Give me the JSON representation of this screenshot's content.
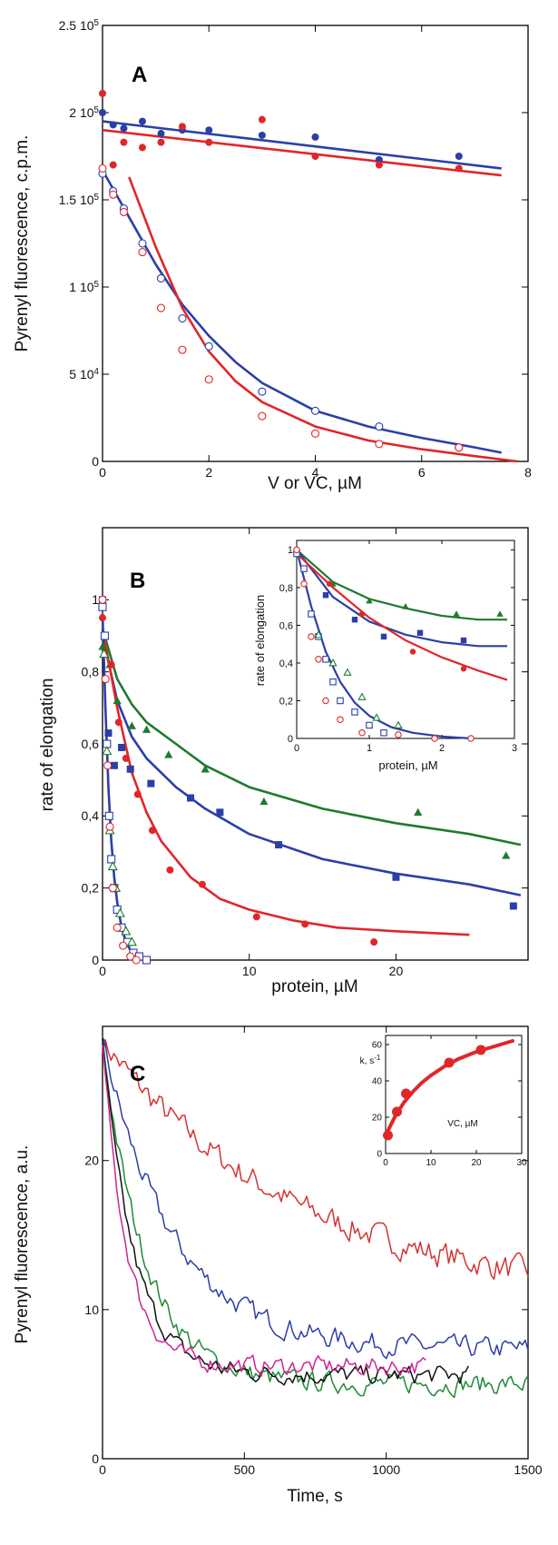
{
  "chart_data": [
    {
      "panel": "A",
      "type": "scatter",
      "xlabel": "V or VC, µM",
      "ylabel": "Pyrenyl fluorescence, c.p.m.",
      "xlim": [
        0,
        8
      ],
      "ylim": [
        0,
        250000
      ],
      "x_ticks": [
        "0",
        "2",
        "4",
        "6",
        "8"
      ],
      "y_ticks": [
        {
          "value": 0,
          "label": "0"
        },
        {
          "value": 50000,
          "label": "5 10",
          "exp": "4"
        },
        {
          "value": 100000,
          "label": "1 10",
          "exp": "5"
        },
        {
          "value": 150000,
          "label": "1.5 10",
          "exp": "5"
        },
        {
          "value": 200000,
          "label": "2 10",
          "exp": "5"
        },
        {
          "value": 250000,
          "label": "2.5 10",
          "exp": "5"
        }
      ],
      "series": [
        {
          "color": "#2b3fa8",
          "marker": "filled-circle",
          "x": [
            0,
            0.2,
            0.4,
            0.75,
            1.1,
            1.5,
            2.0,
            3.0,
            4.0,
            5.2,
            6.7
          ],
          "y": [
            200000,
            193000,
            191000,
            195000,
            188000,
            190000,
            190000,
            187000,
            186000,
            173000,
            175000
          ],
          "fit_x": [
            0,
            7.5
          ],
          "fit_y": [
            195000,
            168000
          ]
        },
        {
          "color": "#e0262a",
          "marker": "filled-circle",
          "x": [
            0,
            0.2,
            0.4,
            0.75,
            1.1,
            1.5,
            2.0,
            3.0,
            4.0,
            5.2,
            6.7
          ],
          "y": [
            211000,
            170000,
            183000,
            180000,
            183000,
            192000,
            183000,
            196000,
            175000,
            170000,
            168000
          ],
          "fit_x": [
            0,
            7.5
          ],
          "fit_y": [
            190000,
            164000
          ]
        },
        {
          "color": "#2b3fa8",
          "marker": "open-circle",
          "x": [
            0,
            0.2,
            0.4,
            0.75,
            1.1,
            1.5,
            2.0,
            3.0,
            4.0,
            5.2,
            6.7
          ],
          "y": [
            165000,
            155000,
            145000,
            125000,
            105000,
            82000,
            66000,
            40000,
            29000,
            20000,
            8000
          ],
          "fit_x": [
            0,
            0.5,
            1,
            1.5,
            2,
            2.5,
            3,
            4,
            5,
            6,
            7,
            7.5
          ],
          "fit_y": [
            167000,
            140000,
            113000,
            90000,
            72000,
            57000,
            45000,
            29000,
            20000,
            13500,
            8000,
            5000
          ]
        },
        {
          "color": "#e0262a",
          "marker": "open-circle",
          "x": [
            0,
            0.2,
            0.4,
            0.75,
            1.1,
            1.5,
            2.0,
            3.0,
            4.0,
            5.2,
            6.7
          ],
          "y": [
            168000,
            153000,
            143000,
            120000,
            88000,
            64000,
            47000,
            26000,
            16000,
            10000,
            8000
          ],
          "fit_x": [
            0.5,
            1,
            1.5,
            2,
            2.5,
            3,
            4,
            5,
            6,
            7,
            7.8
          ],
          "fit_y": [
            163000,
            123000,
            88000,
            63000,
            46000,
            34000,
            20000,
            12000,
            7000,
            3000,
            0
          ]
        }
      ]
    },
    {
      "panel": "B",
      "type": "scatter",
      "xlabel": "protein, µM",
      "ylabel": "rate of elongation",
      "xlim": [
        0,
        29
      ],
      "ylim": [
        0,
        1.2
      ],
      "x_ticks": [
        "0",
        "10",
        "20"
      ],
      "y_ticks": [
        {
          "value": 0,
          "label": "0"
        },
        {
          "value": 0.2,
          "label": "0,2"
        },
        {
          "value": 0.4,
          "label": "0,4"
        },
        {
          "value": 0.6,
          "label": "0,6"
        },
        {
          "value": 0.8,
          "label": "0,8"
        },
        {
          "value": 1.0,
          "label": "1"
        }
      ],
      "series": [
        {
          "color": "#1f7a2e",
          "marker": "filled-triangle",
          "x": [
            0,
            0.5,
            1,
            2,
            3,
            4.5,
            7,
            11,
            21.5,
            27.5
          ],
          "y": [
            0.87,
            0.82,
            0.72,
            0.65,
            0.64,
            0.57,
            0.53,
            0.44,
            0.41,
            0.29
          ],
          "fit_x": [
            0,
            1,
            2,
            3,
            5,
            7,
            10,
            15,
            20,
            25,
            28.5
          ],
          "fit_y": [
            0.92,
            0.78,
            0.71,
            0.66,
            0.6,
            0.54,
            0.48,
            0.42,
            0.38,
            0.35,
            0.32
          ]
        },
        {
          "color": "#2b3fa8",
          "marker": "filled-square",
          "x": [
            0,
            0.4,
            0.8,
            1.3,
            1.9,
            3.3,
            6.0,
            8.0,
            12.0,
            20.0,
            28.0
          ],
          "y": [
            1.0,
            0.63,
            0.54,
            0.59,
            0.53,
            0.49,
            0.45,
            0.41,
            0.32,
            0.23,
            0.15
          ],
          "fit_x": [
            0,
            1,
            2,
            3,
            5,
            7,
            10,
            15,
            20,
            25,
            28.5
          ],
          "fit_y": [
            0.9,
            0.72,
            0.62,
            0.56,
            0.48,
            0.42,
            0.35,
            0.28,
            0.24,
            0.21,
            0.18
          ]
        },
        {
          "color": "#e0262a",
          "marker": "filled-circle",
          "x": [
            0,
            0.6,
            1.1,
            1.6,
            2.4,
            3.4,
            4.6,
            6.8,
            10.5,
            13.8,
            18.5
          ],
          "y": [
            0.95,
            0.82,
            0.66,
            0.56,
            0.46,
            0.36,
            0.25,
            0.21,
            0.12,
            0.1,
            0.05
          ],
          "fit_x": [
            0,
            1,
            2,
            3,
            4,
            6,
            8,
            10,
            13,
            16,
            20,
            25
          ],
          "fit_y": [
            0.92,
            0.7,
            0.52,
            0.41,
            0.33,
            0.23,
            0.17,
            0.14,
            0.11,
            0.09,
            0.08,
            0.07
          ]
        },
        {
          "color": "#2b3fa8",
          "marker": "open-square",
          "x": [
            0,
            0.15,
            0.3,
            0.45,
            0.6,
            0.8,
            1.0,
            1.3,
            1.7,
            2.1,
            2.5,
            3.0
          ],
          "y": [
            0.98,
            0.9,
            0.6,
            0.4,
            0.28,
            0.2,
            0.14,
            0.09,
            0.05,
            0.02,
            0.01,
            0.0
          ],
          "fit_x": [
            0,
            0.2,
            0.4,
            0.6,
            0.8,
            1.0,
            1.3,
            1.6,
            2.0,
            2.5,
            3.0
          ],
          "fit_y": [
            0.96,
            0.7,
            0.48,
            0.33,
            0.23,
            0.16,
            0.09,
            0.05,
            0.02,
            0.01,
            0.0
          ]
        },
        {
          "color": "#1f7a2e",
          "marker": "open-triangle",
          "x": [
            0.1,
            0.3,
            0.5,
            0.7,
            0.9,
            1.2,
            1.6,
            2.0
          ],
          "y": [
            0.85,
            0.58,
            0.36,
            0.26,
            0.2,
            0.13,
            0.08,
            0.05
          ]
        },
        {
          "color": "#e0262a",
          "marker": "open-circle",
          "x": [
            0,
            0.2,
            0.35,
            0.5,
            0.7,
            1.0,
            1.4,
            1.9,
            2.3
          ],
          "y": [
            1.0,
            0.78,
            0.54,
            0.37,
            0.2,
            0.09,
            0.04,
            0.01,
            0.0
          ]
        }
      ],
      "inset": {
        "xlabel": "protein, µM",
        "ylabel": "rate of elongation",
        "xlim": [
          0,
          3
        ],
        "ylim": [
          0,
          1.05
        ],
        "x_ticks": [
          "0",
          "1",
          "2",
          "3"
        ],
        "y_ticks": [
          {
            "value": 0,
            "label": "0"
          },
          {
            "value": 0.2,
            "label": "0,2"
          },
          {
            "value": 0.4,
            "label": "0,4"
          },
          {
            "value": 0.6,
            "label": "0,6"
          },
          {
            "value": 0.8,
            "label": "0,8"
          },
          {
            "value": 1.0,
            "label": "1"
          }
        ],
        "series": [
          {
            "color": "#1f7a2e",
            "marker": "filled-triangle",
            "x": [
              0,
              0.5,
              1.0,
              1.5,
              2.2,
              2.8
            ],
            "y": [
              1.0,
              0.82,
              0.73,
              0.7,
              0.66,
              0.66
            ],
            "fit_x": [
              0,
              0.5,
              1,
              1.5,
              2,
              2.5,
              2.9
            ],
            "fit_y": [
              1.0,
              0.83,
              0.74,
              0.69,
              0.65,
              0.63,
              0.63
            ]
          },
          {
            "color": "#2b3fa8",
            "marker": "filled-square",
            "x": [
              0,
              0.4,
              0.8,
              1.2,
              1.7,
              2.3
            ],
            "y": [
              0.98,
              0.76,
              0.63,
              0.54,
              0.56,
              0.52
            ],
            "fit_x": [
              0,
              0.5,
              1,
              1.5,
              2,
              2.5,
              2.9
            ],
            "fit_y": [
              1.0,
              0.75,
              0.62,
              0.55,
              0.51,
              0.49,
              0.49
            ]
          },
          {
            "color": "#e0262a",
            "marker": "filled-circle",
            "x": [
              0,
              0.45,
              0.9,
              1.6,
              2.3
            ],
            "y": [
              1.0,
              0.82,
              0.66,
              0.46,
              0.37
            ],
            "fit_x": [
              0,
              0.5,
              1,
              1.5,
              2,
              2.5,
              2.9
            ],
            "fit_y": [
              0.98,
              0.8,
              0.64,
              0.52,
              0.43,
              0.36,
              0.31
            ]
          },
          {
            "color": "#2b3fa8",
            "marker": "open-square",
            "x": [
              0,
              0.1,
              0.2,
              0.3,
              0.4,
              0.5,
              0.6,
              0.8,
              1.0,
              1.2
            ],
            "y": [
              0.98,
              0.9,
              0.66,
              0.54,
              0.42,
              0.3,
              0.2,
              0.14,
              0.07,
              0.03
            ],
            "fit_x": [
              0,
              0.2,
              0.4,
              0.6,
              0.8,
              1.0,
              1.3,
              1.6,
              2.0,
              2.4
            ],
            "fit_y": [
              1.0,
              0.7,
              0.46,
              0.3,
              0.19,
              0.12,
              0.06,
              0.03,
              0.01,
              0.0
            ]
          },
          {
            "color": "#1f7a2e",
            "marker": "open-triangle",
            "x": [
              0.3,
              0.5,
              0.7,
              0.9,
              1.1,
              1.4
            ],
            "y": [
              0.55,
              0.4,
              0.35,
              0.22,
              0.11,
              0.07
            ]
          },
          {
            "color": "#e0262a",
            "marker": "open-circle",
            "x": [
              0,
              0.1,
              0.2,
              0.3,
              0.4,
              0.6,
              0.9,
              1.4,
              1.9,
              2.4
            ],
            "y": [
              1.0,
              0.82,
              0.54,
              0.42,
              0.2,
              0.1,
              0.03,
              0.02,
              0.0,
              0.0
            ]
          }
        ]
      }
    },
    {
      "panel": "C",
      "type": "line",
      "xlabel": "Time, s",
      "ylabel": "Pyrenyl fluorescence, a.u.",
      "xlim": [
        0,
        1500
      ],
      "ylim": [
        0,
        29
      ],
      "x_ticks": [
        "0",
        "500",
        "1000",
        "1500"
      ],
      "y_ticks": [
        {
          "value": 0,
          "label": "0"
        },
        {
          "value": 10,
          "label": "10"
        },
        {
          "value": 20,
          "label": "20"
        }
      ],
      "series": [
        {
          "color": "#d13434",
          "start": 28,
          "tau": 700,
          "end": 10.5,
          "tmax": 1500,
          "noise": 0.8
        },
        {
          "color": "#2c3ea8",
          "start": 28,
          "tau": 250,
          "end": 7.3,
          "tmax": 1500,
          "noise": 0.65
        },
        {
          "color": "#1f8a36",
          "start": 28,
          "tau": 150,
          "end": 5.0,
          "tmax": 1500,
          "noise": 0.6
        },
        {
          "color": "#111111",
          "start": 28,
          "tau": 110,
          "end": 5.6,
          "tmax": 1290,
          "noise": 0.55
        },
        {
          "color": "#d02490",
          "start": 28,
          "tau": 85,
          "end": 6.2,
          "tmax": 1140,
          "noise": 0.55
        }
      ],
      "inset": {
        "xlabel": "VC, µM",
        "ylabel": "k, s",
        "ylabel_exp": "-1",
        "xlim": [
          0,
          30
        ],
        "ylim": [
          0,
          65
        ],
        "x_ticks": [
          "0",
          "10",
          "20",
          "30"
        ],
        "y_ticks": [
          {
            "value": 0,
            "label": "0"
          },
          {
            "value": 20,
            "label": "20"
          },
          {
            "value": 40,
            "label": "40"
          },
          {
            "value": 60,
            "label": "60"
          }
        ],
        "points": {
          "x": [
            0.5,
            2.5,
            4.5,
            14,
            21
          ],
          "y": [
            10,
            23,
            33,
            50,
            57
          ]
        },
        "fit": {
          "x": [
            0,
            2,
            4,
            6,
            8,
            10,
            13,
            16,
            20,
            24,
            28
          ],
          "y": [
            10,
            20,
            28,
            34,
            39,
            43,
            48,
            52,
            56,
            59,
            62
          ]
        },
        "color": "#e0262a"
      }
    }
  ]
}
